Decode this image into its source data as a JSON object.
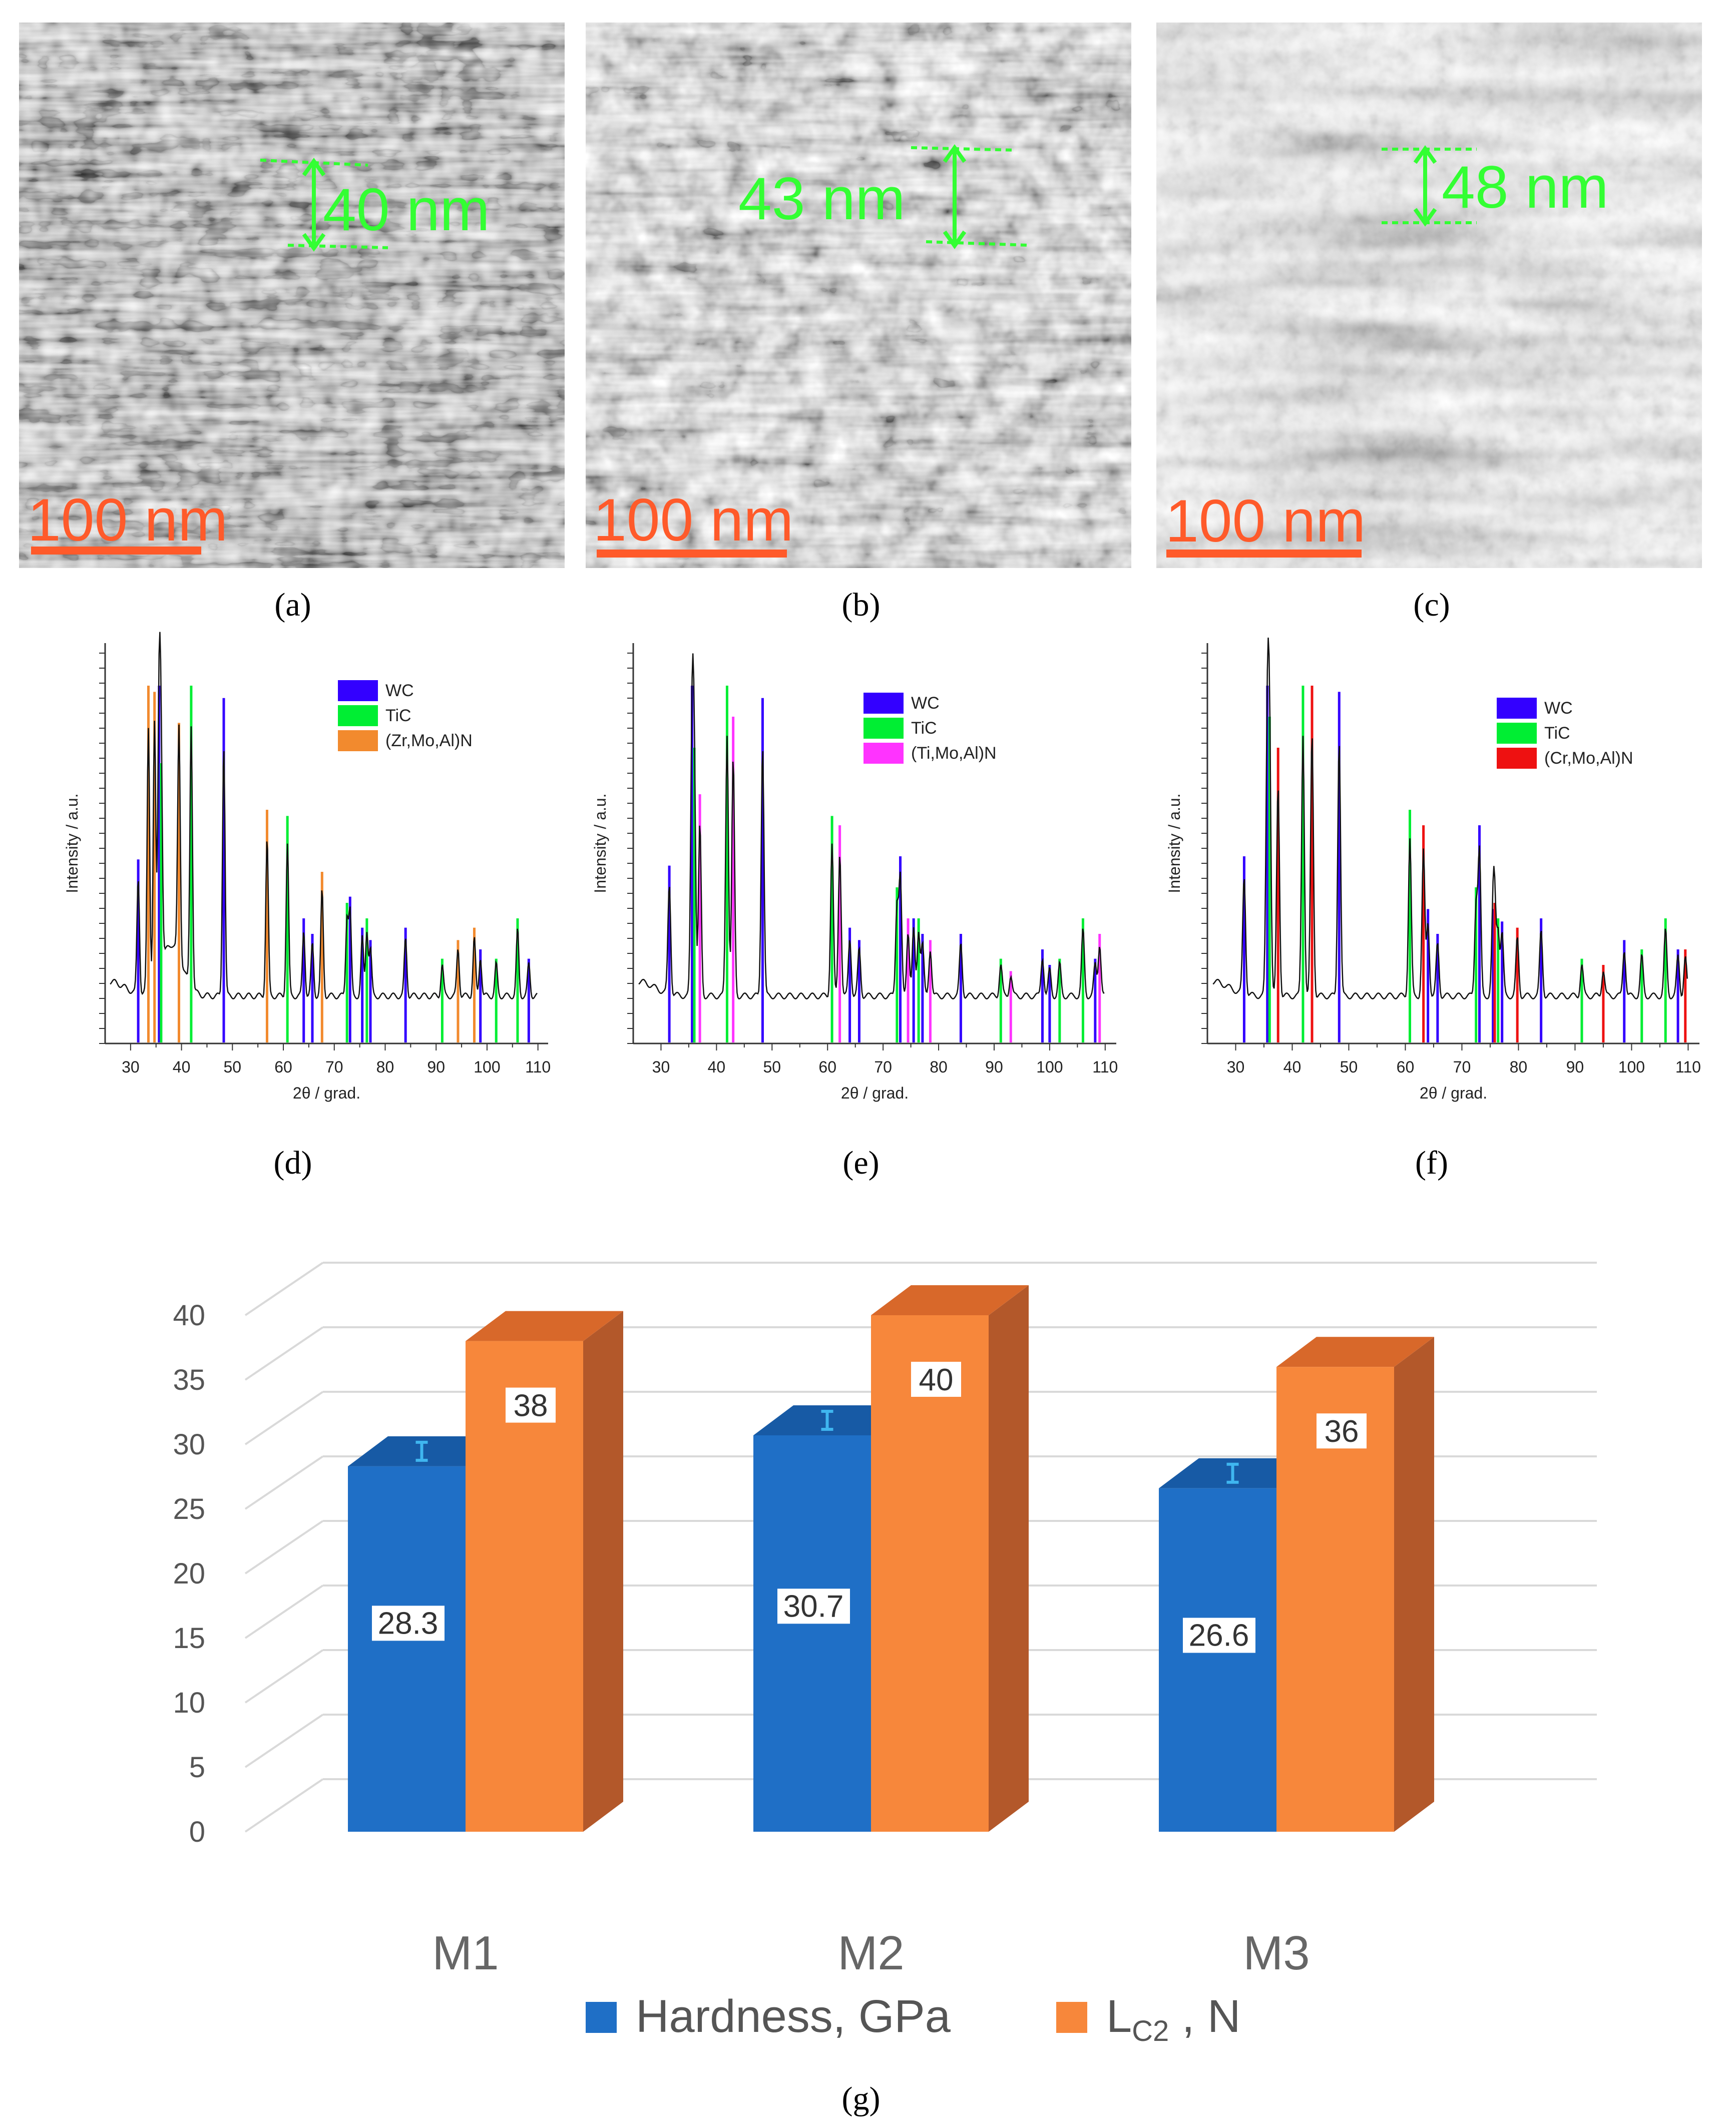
{
  "tem": [
    {
      "caption": "(a)",
      "measure": "40 nm",
      "scale": "100 nm"
    },
    {
      "caption": "(b)",
      "measure": "43 nm",
      "scale": "100 nm"
    },
    {
      "caption": "(c)",
      "measure": "48 nm",
      "scale": "100 nm"
    }
  ],
  "colors": {
    "wc": "#3300ff",
    "tic": "#00ee33",
    "zr_phase": "#f28a2e",
    "ti_phase": "#ff33ff",
    "cr_phase": "#ee1111",
    "hardness": "#1f6fc6",
    "hardness_top": "#175aa5",
    "lc2": "#f7873b",
    "lc2_side": "#b3582a",
    "lc2_top": "#d8682a",
    "measure": "#33ff33",
    "scalebar": "#ff5a2a"
  },
  "chart_data": [
    {
      "type": "line",
      "caption": "(d)",
      "xlabel": "2θ / grad.",
      "ylabel": "Intensity / a.u.",
      "xlim": [
        25,
        112
      ],
      "xticks": [
        30,
        40,
        50,
        60,
        70,
        80,
        90,
        100,
        110
      ],
      "legend": [
        "WC",
        "TiC",
        "(Zr,Mo,Al)N"
      ],
      "legend_position": "top-right",
      "peaks": [
        {
          "phase": "WC",
          "x": [
            31.5,
            35.6,
            48.3,
            64.0,
            65.7,
            73.1,
            75.5,
            77.1,
            84.0,
            98.7,
            108.2
          ],
          "h": [
            0.44,
            1.0,
            0.96,
            0.25,
            0.2,
            0.32,
            0.22,
            0.18,
            0.22,
            0.15,
            0.12
          ]
        },
        {
          "phase": "TiC",
          "x": [
            36.0,
            41.9,
            60.8,
            72.5,
            76.4,
            91.2,
            101.8,
            106.0
          ],
          "h": [
            0.75,
            1.0,
            0.58,
            0.3,
            0.25,
            0.12,
            0.12,
            0.25
          ]
        },
        {
          "phase": "(Zr,Mo,Al)N",
          "x": [
            33.5,
            34.7,
            39.5,
            56.8,
            67.6,
            94.3,
            97.5
          ],
          "h": [
            1.0,
            0.98,
            0.88,
            0.6,
            0.4,
            0.18,
            0.22
          ]
        }
      ]
    },
    {
      "type": "line",
      "caption": "(e)",
      "xlabel": "2θ / grad.",
      "ylabel": "Intensity / a.u.",
      "xlim": [
        25,
        112
      ],
      "xticks": [
        30,
        40,
        50,
        60,
        70,
        80,
        90,
        100,
        110
      ],
      "legend": [
        "WC",
        "TiC",
        "(Ti,Mo,Al)N"
      ],
      "legend_position": "top-right",
      "peaks": [
        {
          "phase": "WC",
          "x": [
            31.5,
            35.6,
            48.3,
            64.0,
            65.7,
            73.1,
            75.5,
            77.1,
            84.0,
            98.7,
            100.0,
            108.2
          ],
          "h": [
            0.42,
            1.0,
            0.96,
            0.22,
            0.18,
            0.45,
            0.25,
            0.2,
            0.2,
            0.15,
            0.1,
            0.12
          ]
        },
        {
          "phase": "TiC",
          "x": [
            36.0,
            41.9,
            60.8,
            72.5,
            76.4,
            91.2,
            101.8,
            106.0
          ],
          "h": [
            0.8,
            1.0,
            0.58,
            0.35,
            0.25,
            0.12,
            0.12,
            0.25
          ]
        },
        {
          "phase": "(Ti,Mo,Al)N",
          "x": [
            37.0,
            43.0,
            62.2,
            74.5,
            78.5,
            93.0,
            109.0
          ],
          "h": [
            0.65,
            0.9,
            0.55,
            0.25,
            0.18,
            0.08,
            0.2
          ]
        }
      ]
    },
    {
      "type": "line",
      "caption": "(f)",
      "xlabel": "2θ / grad.",
      "ylabel": "Intensity / a.u.",
      "xlim": [
        25,
        112
      ],
      "xticks": [
        30,
        40,
        50,
        60,
        70,
        80,
        90,
        100,
        110
      ],
      "legend": [
        "WC",
        "TiC",
        "(Cr,Mo,Al)N"
      ],
      "legend_position": "top-right",
      "peaks": [
        {
          "phase": "WC",
          "x": [
            31.5,
            35.6,
            48.3,
            64.0,
            65.7,
            73.1,
            75.5,
            77.1,
            84.0,
            98.7,
            108.2
          ],
          "h": [
            0.45,
            1.0,
            0.98,
            0.28,
            0.2,
            0.55,
            0.28,
            0.24,
            0.25,
            0.18,
            0.15
          ]
        },
        {
          "phase": "TiC",
          "x": [
            36.0,
            41.9,
            60.8,
            72.5,
            76.4,
            91.2,
            101.8,
            106.0
          ],
          "h": [
            0.9,
            1.0,
            0.6,
            0.35,
            0.25,
            0.12,
            0.15,
            0.25
          ]
        },
        {
          "phase": "(Cr,Mo,Al)N",
          "x": [
            37.5,
            43.5,
            63.2,
            75.8,
            79.8,
            95.0,
            109.5
          ],
          "h": [
            0.8,
            1.0,
            0.55,
            0.3,
            0.22,
            0.1,
            0.15
          ]
        }
      ]
    },
    {
      "type": "bar",
      "caption": "(g)",
      "categories": [
        "M1",
        "M2",
        "M3"
      ],
      "ylim": [
        0,
        40
      ],
      "yticks": [
        0,
        5,
        10,
        15,
        20,
        25,
        30,
        35,
        40
      ],
      "legend_position": "bottom",
      "series": [
        {
          "name": "Hardness, GPa",
          "values": [
            28.3,
            30.7,
            26.6
          ],
          "labels": [
            "28.3",
            "30.7",
            "26.6"
          ]
        },
        {
          "name": "L",
          "name_sub": "C2",
          "name_suffix": " , N",
          "values": [
            38,
            40,
            36
          ],
          "labels": [
            "38",
            "40",
            "36"
          ]
        }
      ]
    }
  ]
}
